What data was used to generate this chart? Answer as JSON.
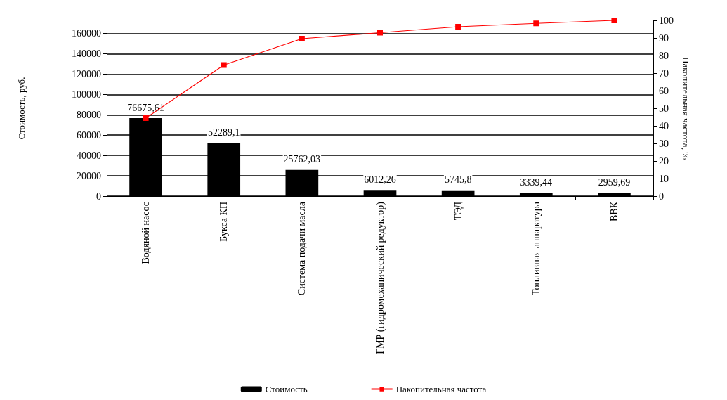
{
  "chart_data": {
    "type": "bar",
    "ylabel": "Стоимость, руб.",
    "y2label": "Накопительная частота, %",
    "categories": [
      "Водяной насос",
      "Букса КП",
      "Система подачи масла",
      "ГМР (гидромеханический редуктор)",
      "ТЭД",
      "Топливная аппаратура",
      "ВВК"
    ],
    "series": [
      {
        "name": "Стоимость",
        "color": "#000000",
        "values": [
          76675.61,
          52289.1,
          25762.03,
          6012.26,
          5745.8,
          3339.44,
          2959.69
        ],
        "value_labels": [
          "76675,61",
          "52289,1",
          "25762,03",
          "6012,26",
          "5745,8",
          "3339,44",
          "2959,69"
        ]
      },
      {
        "name": "Накопительная частота",
        "type": "line",
        "axis": "y2",
        "color": "#ff0000",
        "marker": "square",
        "values": [
          44.4,
          74.6,
          89.6,
          93.0,
          96.4,
          98.3,
          100
        ]
      }
    ],
    "ylim": [
      0,
      172800
    ],
    "yticks": [
      0,
      20000,
      40000,
      60000,
      80000,
      100000,
      120000,
      140000,
      160000
    ],
    "y2lim": [
      0,
      100
    ],
    "y2ticks": [
      0,
      10,
      20,
      30,
      40,
      50,
      60,
      70,
      80,
      90,
      100
    ],
    "grid": "y",
    "legend": "bottom"
  }
}
